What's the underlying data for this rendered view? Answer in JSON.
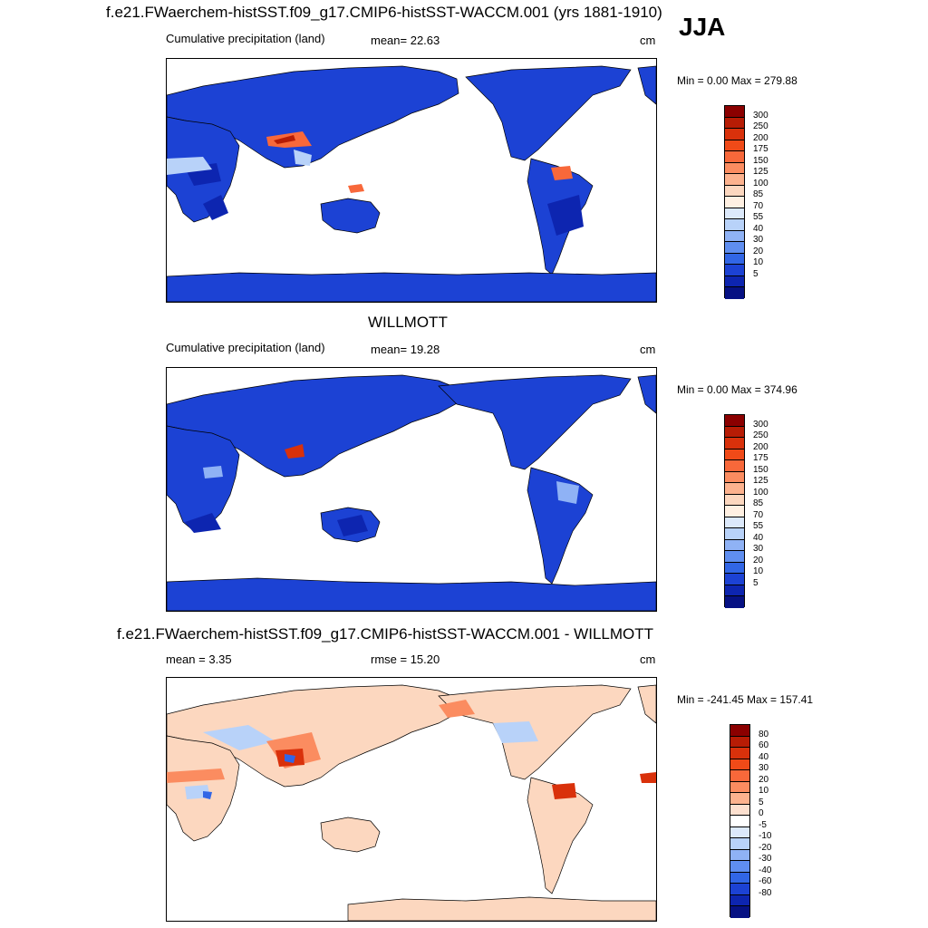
{
  "season": "JJA",
  "units": "cm",
  "panels": [
    {
      "title": "f.e21.FWaerchem-histSST.f09_g17.CMIP6-histSST-WACCM.001 (yrs 1881-1910)",
      "left_label": "Cumulative precipitation (land)",
      "stat_label": "mean=  22.63",
      "units": "cm",
      "minmax": "Min =   0.00 Max = 279.88",
      "colorbar": {
        "labels": [
          "300",
          "250",
          "200",
          "175",
          "150",
          "125",
          "100",
          "85",
          "70",
          "55",
          "40",
          "30",
          "20",
          "10",
          "5"
        ],
        "colors": [
          "#8b0000",
          "#b71c05",
          "#d9310b",
          "#f04a18",
          "#f8683a",
          "#fb8c60",
          "#fcb28e",
          "#fcd7bf",
          "#fff0e2",
          "#dce9fb",
          "#b8d2f9",
          "#8fb2f5",
          "#5f8ef0",
          "#3166e6",
          "#1c42d4",
          "#0d25b0",
          "#061183"
        ]
      }
    },
    {
      "title": "WILLMOTT",
      "left_label": "Cumulative precipitation (land)",
      "stat_label": "mean=  19.28",
      "units": "cm",
      "minmax": "Min =   0.00 Max = 374.96",
      "colorbar": {
        "labels": [
          "300",
          "250",
          "200",
          "175",
          "150",
          "125",
          "100",
          "85",
          "70",
          "55",
          "40",
          "30",
          "20",
          "10",
          "5"
        ],
        "colors": [
          "#8b0000",
          "#b71c05",
          "#d9310b",
          "#f04a18",
          "#f8683a",
          "#fb8c60",
          "#fcb28e",
          "#fcd7bf",
          "#fff0e2",
          "#dce9fb",
          "#b8d2f9",
          "#8fb2f5",
          "#5f8ef0",
          "#3166e6",
          "#1c42d4",
          "#0d25b0",
          "#061183"
        ]
      }
    },
    {
      "title": "f.e21.FWaerchem-histSST.f09_g17.CMIP6-histSST-WACCM.001 - WILLMOTT",
      "left_label": "mean =   3.35",
      "stat_label": "rmse =  15.20",
      "units": "cm",
      "minmax": "Min = -241.45 Max = 157.41",
      "colorbar": {
        "labels": [
          "80",
          "60",
          "40",
          "30",
          "20",
          "10",
          "5",
          "0",
          "-5",
          "-10",
          "-20",
          "-30",
          "-40",
          "-60",
          "-80"
        ],
        "colors": [
          "#8b0000",
          "#b71c05",
          "#d9310b",
          "#f04a18",
          "#f8683a",
          "#fb8c60",
          "#fcb28e",
          "#fde0cf",
          "#ffffff",
          "#dce9fb",
          "#b8d2f9",
          "#8fb2f5",
          "#5f8ef0",
          "#3166e6",
          "#1c42d4",
          "#0d25b0",
          "#061183"
        ]
      }
    }
  ]
}
